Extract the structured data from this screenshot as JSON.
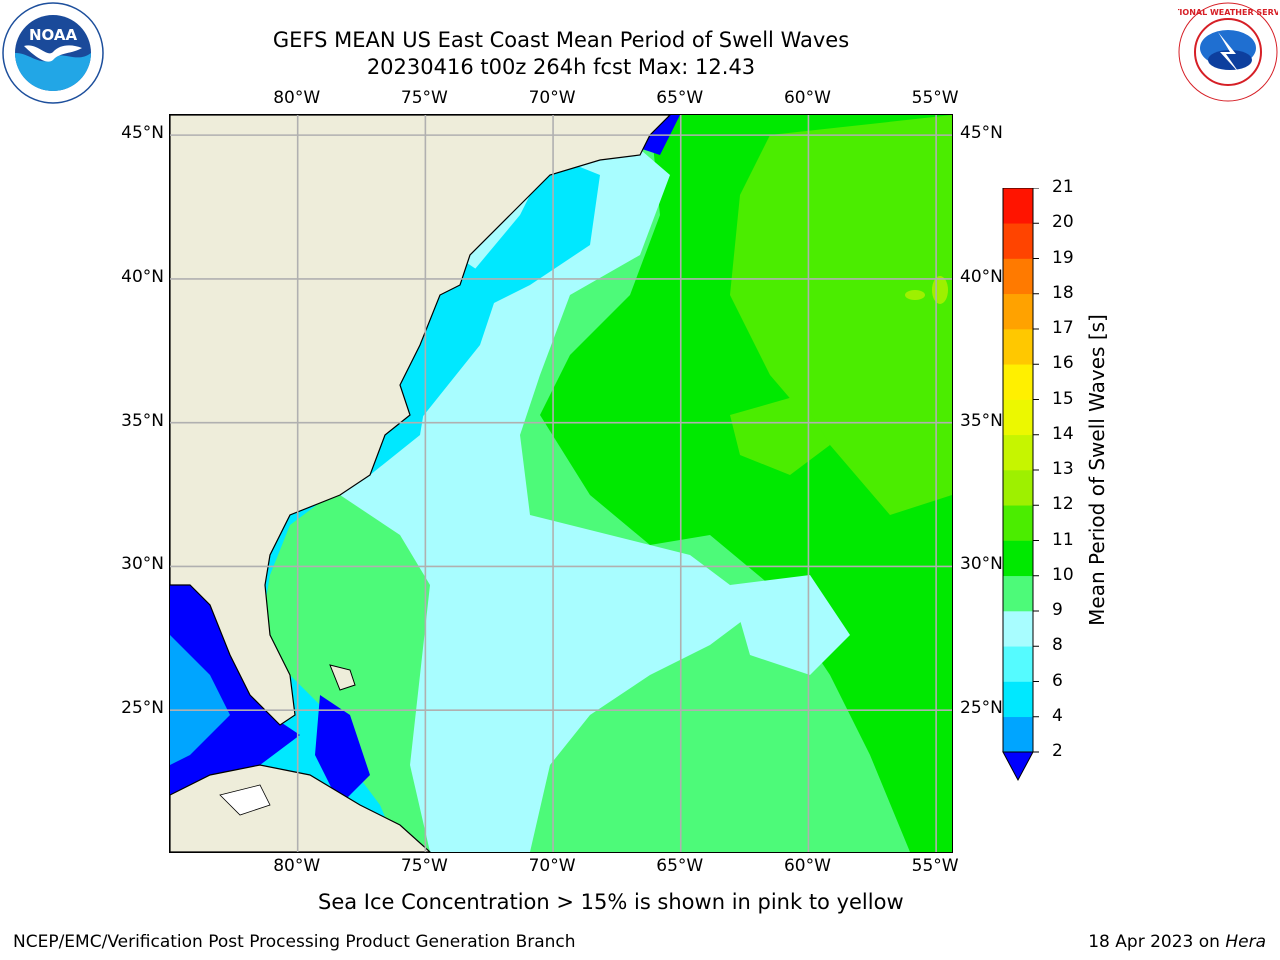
{
  "title": {
    "line1": "GEFS MEAN US East Coast Mean Period of Swell Waves",
    "line2": "20230416 t00z 264h fcst   Max: 12.43"
  },
  "logos": {
    "left": {
      "icon": "noaa-logo",
      "text": "NOAA",
      "ring_text": "NATIONAL OCEANIC AND ATMOSPHERIC ADMINISTRATION · U.S. DEPARTMENT OF COMMERCE"
    },
    "right": {
      "icon": "nws-logo",
      "ring_text": "NATIONAL WEATHER SERVICE"
    }
  },
  "axes": {
    "lon_labels": [
      "80°W",
      "75°W",
      "70°W",
      "65°W",
      "60°W",
      "55°W"
    ],
    "lat_labels": [
      "45°N",
      "40°N",
      "35°N",
      "30°N",
      "25°N"
    ],
    "lon_values": [
      -80,
      -75,
      -70,
      -65,
      -60,
      -55
    ],
    "lat_values": [
      45,
      40,
      35,
      30,
      25
    ],
    "extent": {
      "lon_min": -85,
      "lon_max": -54.3,
      "lat_min": 20,
      "lat_max": 45.7
    }
  },
  "colorbar": {
    "title": "Mean Period of Swell Waves [s]",
    "ticks": [
      "2",
      "4",
      "6",
      "8",
      "9",
      "10",
      "11",
      "12",
      "13",
      "14",
      "15",
      "16",
      "17",
      "18",
      "19",
      "20",
      "21"
    ],
    "colors": [
      "#0037ff",
      "#00a5ff",
      "#00e8ff",
      "#55fbff",
      "#a8fdff",
      "#4dfa79",
      "#00e900",
      "#4bed00",
      "#9ef000",
      "#c6f500",
      "#ecf800",
      "#fff000",
      "#ffc800",
      "#ffa200",
      "#ff7a00",
      "#ff4400",
      "#ff1400"
    ],
    "extend_color": "#0000ff"
  },
  "map": {
    "land_color": "#eeedda",
    "grid_color": "#b0b0b0",
    "field_colors": {
      "2-4": "#0000ff",
      "4-6": "#00a5ff",
      "6-8": "#00e8ff",
      "8-9": "#a8fdff",
      "9-10": "#4dfa79",
      "10-11": "#00e900",
      "11-12": "#4bed00",
      "12-13": "#9ef000"
    }
  },
  "footnote": "Sea Ice Concentration > 15% is shown in pink to yellow",
  "credit": "NCEP/EMC/Verification Post Processing Product Generation Branch",
  "datestamp": {
    "date": "18 Apr 2023 on ",
    "host": "Hera"
  }
}
